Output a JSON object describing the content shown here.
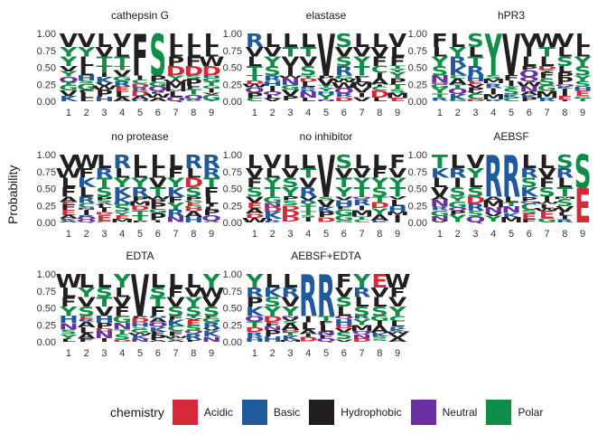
{
  "chart_data": {
    "type": "sequence-logo",
    "ylabel": "Probability",
    "yticks": [
      "1.00",
      "0.75",
      "0.50",
      "0.25",
      "0.00"
    ],
    "positions": [
      "1",
      "2",
      "3",
      "4",
      "5",
      "6",
      "7",
      "8",
      "9"
    ],
    "panels": [
      {
        "title": "cathepsin G",
        "top": [
          "VYY",
          "VYLL",
          "LVT",
          "VLT",
          "FLY",
          "SMA",
          "LLPD",
          "LLFD",
          "LLWD"
        ],
        "emphasis": {
          "5": "F",
          "6": "S"
        }
      },
      {
        "title": "elastase",
        "top": [
          "RVLT",
          "LVYS",
          "LTVI",
          "LTVS",
          "VTLV",
          "SVSR",
          "LVYT",
          "LVF",
          "VLF"
        ],
        "emphasis": {
          "5": "V"
        }
      },
      {
        "title": "hPR3",
        "top": [
          "FLYS",
          "LYRK",
          "SLTR",
          "YVLN",
          "LFV",
          "VIL",
          "WTL",
          "VLS",
          "LLYS"
        ],
        "emphasis": {
          "5": "V",
          "4": "Y"
        }
      },
      {
        "title": "no protease",
        "top": [
          "VWLF",
          "WFKL",
          "LRTS",
          "RLYK",
          "LLYR",
          "LLVT",
          "LFYK",
          "RLDS",
          "RRTF"
        ],
        "emphasis": {}
      },
      {
        "title": "no inhibitor",
        "top": [
          "LVFS",
          "VLYT",
          "LVSY",
          "LTVR",
          "VLSI",
          "SVTY",
          "LVYT",
          "LFYS",
          "FVYT"
        ],
        "emphasis": {
          "5": "V"
        }
      },
      {
        "title": "AEBSF",
        "top": [
          "TKLV",
          "LRIS",
          "VYLS",
          "RRKY",
          "RRLS",
          "LRSK",
          "LVFS",
          "SRLT",
          "SE"
        ],
        "emphasis": {
          "4": "R",
          "5": "R",
          "9": "SE"
        }
      },
      {
        "title": "EDTA",
        "top": [
          "WLFY",
          "LYVS",
          "LSTV",
          "YLVF",
          "VLT",
          "LSTF",
          "LFVS",
          "LVYS",
          "YWVS"
        ],
        "emphasis": {
          "5": "V"
        }
      },
      {
        "title": "AEBSF+EDTA",
        "top": [
          "YRPK",
          "LKSY",
          "LRVY",
          "RRYV",
          "RRVY",
          "FVSL",
          "YRLS",
          "EVLS",
          "WFVY"
        ],
        "emphasis": {
          "4": "R",
          "5": "R"
        }
      }
    ],
    "legend": {
      "title": "chemistry",
      "items": [
        {
          "label": "Acidic",
          "color": "#d62839"
        },
        {
          "label": "Basic",
          "color": "#215a9c"
        },
        {
          "label": "Hydrophobic",
          "color": "#231f20"
        },
        {
          "label": "Neutral",
          "color": "#6a2fa0"
        },
        {
          "label": "Polar",
          "color": "#0e8e47"
        }
      ],
      "placement": "bottom"
    }
  },
  "residue_colors": {
    "D": "#d62839",
    "E": "#d62839",
    "R": "#215a9c",
    "K": "#215a9c",
    "H": "#215a9c",
    "A": "#231f20",
    "V": "#231f20",
    "L": "#231f20",
    "I": "#231f20",
    "P": "#231f20",
    "W": "#231f20",
    "F": "#231f20",
    "M": "#231f20",
    "Q": "#6a2fa0",
    "N": "#6a2fa0",
    "S": "#0e8e47",
    "G": "#0e8e47",
    "T": "#0e8e47",
    "C": "#0e8e47",
    "Y": "#0e8e47"
  }
}
